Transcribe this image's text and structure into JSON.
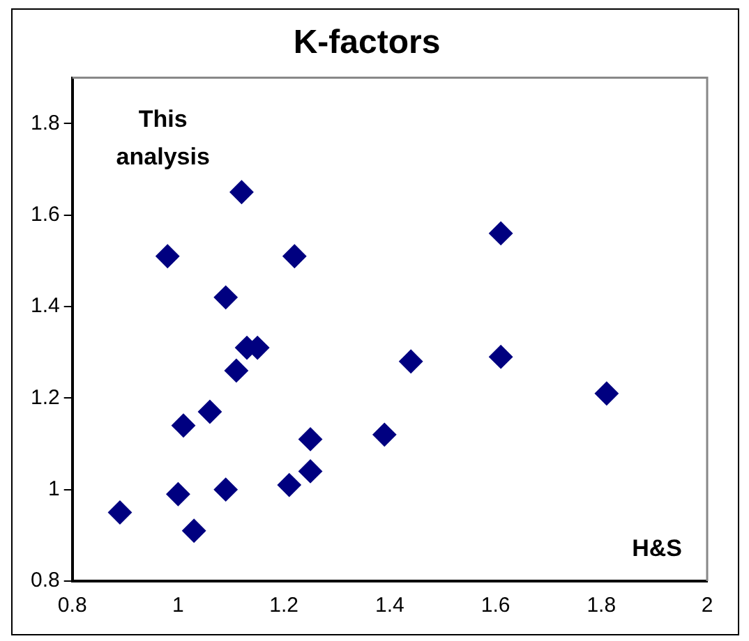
{
  "chart_data": {
    "type": "scatter",
    "title": "K-factors",
    "xlabel": "H&S",
    "ylabel": "This analysis",
    "x": [
      0.89,
      1.0,
      1.03,
      1.01,
      1.06,
      0.98,
      1.12,
      1.09,
      1.11,
      1.13,
      1.15,
      1.09,
      1.21,
      1.25,
      1.22,
      1.39,
      1.44,
      1.61,
      1.61,
      1.81,
      1.25
    ],
    "values": [
      0.95,
      0.99,
      0.91,
      1.14,
      1.17,
      1.51,
      1.65,
      1.42,
      1.26,
      1.31,
      1.31,
      1.0,
      1.01,
      1.04,
      1.51,
      1.12,
      1.28,
      1.56,
      1.29,
      1.21,
      1.11
    ],
    "color": "#000080",
    "marker": "diamond",
    "xlim": [
      0.8,
      2
    ],
    "xticks": [
      0.8,
      1,
      1.2,
      1.4,
      1.6,
      1.8,
      2
    ],
    "ylim": [
      0.8,
      1.9
    ],
    "yticks": [
      0.8,
      1,
      1.2,
      1.4,
      1.6,
      1.8
    ],
    "grid": false,
    "legend": false
  }
}
